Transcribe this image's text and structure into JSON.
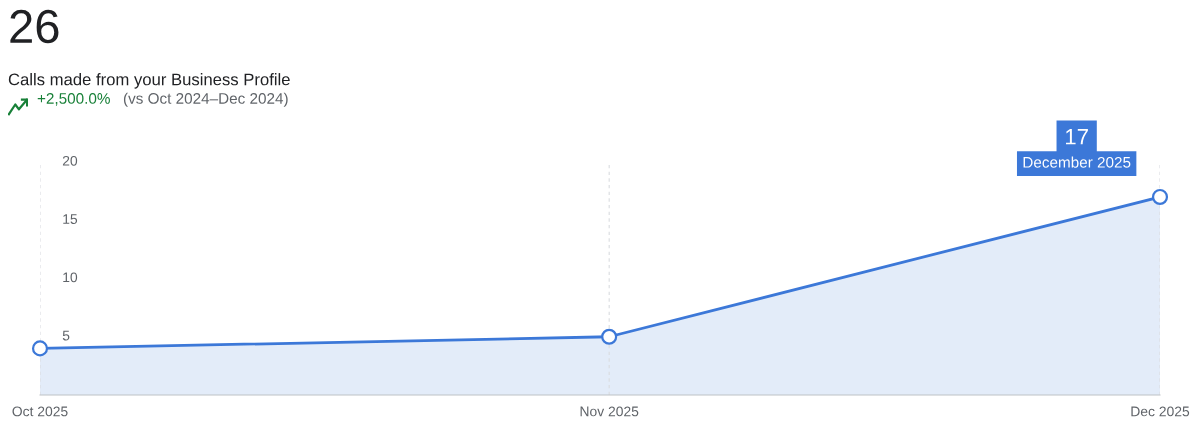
{
  "chart_data": {
    "type": "area",
    "title": "26",
    "subtitle": "Calls made from your Business Profile",
    "annotations": [
      "+2,500.0%",
      "(vs Oct 2024–Dec 2024)",
      "17",
      "December 2025"
    ],
    "x": [
      "2025-10",
      "2025-11",
      "2025-12"
    ],
    "series": [
      {
        "color": "#3c78d8",
        "values": [
          4,
          5,
          17
        ]
      }
    ],
    "xlim": [
      "2025-10",
      "2025-12"
    ],
    "xticks": [
      {
        "value": "2025-10",
        "label": "Oct 2025"
      },
      {
        "value": "2025-11",
        "label": "Nov 2025"
      },
      {
        "value": "2025-12",
        "label": "Dec 2025"
      }
    ],
    "ylim": [
      0,
      20
    ],
    "yticks": [
      5,
      10,
      15,
      20
    ],
    "grid": "x",
    "marker": "circle",
    "line_style": "solid",
    "legend": false
  }
}
